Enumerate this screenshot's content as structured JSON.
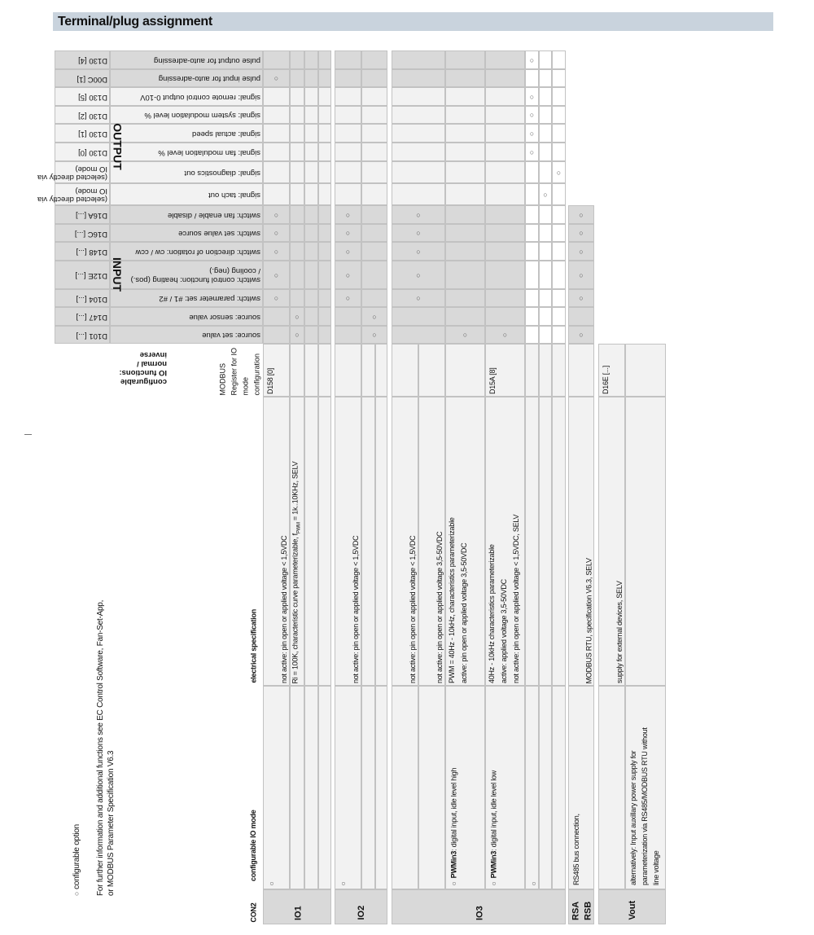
{
  "title": "Terminal/plug assignment",
  "colors": {
    "dark": "#d9d9d9",
    "light": "#f2f2f2",
    "border": "#c2c2c2",
    "title_bg": "#c9d3dd"
  },
  "mark_symbol": "○",
  "legend": {
    "symbol": "○",
    "label": "configurable  option"
  },
  "note": [
    "For further information and additional functions see EC Control Software, Fan-Set-App,",
    "or MODBUS Parameter Specification V6.3"
  ],
  "headers": {
    "con": "CON2",
    "mode": "configurable IO mode",
    "elec": "electrical specification",
    "reg": "MODBUS Register for IO mode configuration",
    "functions": "configurable IO functions: normal / inverse"
  },
  "sections": {
    "output": "OUTPUT",
    "input": "INPUT"
  },
  "functions": [
    {
      "label": "pulse output for auto-adressing",
      "register": "D130 [4]",
      "section": "output",
      "shade": "dark",
      "marks": [
        9
      ]
    },
    {
      "label": "pulse input for auto-adressing",
      "register": "D00C [1]",
      "section": "output",
      "shade": "dark",
      "marks": [
        0
      ]
    },
    {
      "label": "signal: remote control output 0-10V",
      "register": "D130 [5]",
      "section": "output",
      "shade": "light",
      "marks": [
        9
      ]
    },
    {
      "label": "signal: system modulation level %",
      "register": "D130 [2]",
      "section": "output",
      "shade": "light",
      "marks": [
        9
      ]
    },
    {
      "label": "signal: actual speed",
      "register": "D130 [1]",
      "section": "output",
      "shade": "light",
      "marks": [
        9
      ]
    },
    {
      "label": "signal: fan modulation level %",
      "register": "D130 [0]",
      "section": "output",
      "shade": "light",
      "marks": [
        9
      ]
    },
    {
      "label": "signal: diagnostics out",
      "register": "(selected directly via IO mode)",
      "section": "output",
      "shade": "light",
      "marks": [
        11
      ]
    },
    {
      "label": "signal: tach out",
      "register": "(selected directly via IO mode)",
      "section": "output",
      "shade": "light",
      "marks": [
        10
      ]
    },
    {
      "label": "switch: fan enable / disable",
      "register": "D16A [...]",
      "section": "input",
      "shade": "dark",
      "marks": [
        0,
        4,
        6,
        12
      ]
    },
    {
      "label": "switch: set value source",
      "register": "D16C [...]",
      "section": "input",
      "shade": "dark",
      "marks": [
        0,
        4,
        6,
        12
      ]
    },
    {
      "label": "switch: direction of rotation: cw / ccw",
      "register": "D148 [...]",
      "section": "input",
      "shade": "dark",
      "marks": [
        0,
        4,
        6,
        12
      ]
    },
    {
      "label": "switch: control function: heating (pos.) / cooling (neg.)",
      "register": "D12E [...]",
      "section": "input",
      "shade": "dark",
      "marks": [
        0,
        4,
        6,
        12
      ]
    },
    {
      "label": "switch: parameter set: #1 / #2",
      "register": "D104 [...]",
      "section": "input",
      "shade": "dark",
      "marks": [
        0,
        4,
        6,
        12
      ]
    },
    {
      "label": "source: sensor value",
      "register": "D147 [...]",
      "section": "input",
      "shade": "dark",
      "marks": [
        1,
        5
      ]
    },
    {
      "label": "source: set value",
      "register": "D101 [...]",
      "section": "input",
      "shade": "dark",
      "marks": [
        1,
        5,
        7,
        8,
        12
      ]
    }
  ],
  "terminals": [
    {
      "name": "IO1",
      "rows": [
        {
          "option": true,
          "elec": [
            "not active: pin open or applied voltage < 1,5VDC"
          ],
          "register": "D158 [0]"
        },
        {
          "elec": [
            {
              "pre": "Ri = 100K, characteristic curve parameterizable, f",
              "sub": "PWM",
              "post": " = 1k..10KHz, SELV"
            }
          ]
        },
        {},
        {}
      ]
    },
    {
      "name": "IO2",
      "rows": [
        {
          "option": true,
          "elec": [
            "not active: pin open or applied voltage < 1,5VDC"
          ]
        },
        {},
        {}
      ]
    },
    {
      "name": "IO3",
      "rows": [
        {
          "elec": [
            "not active: pin open or applied voltage < 1,5VDC"
          ]
        },
        {
          "elec": [
            "not active: pin open or applied voltage 3,5-50VDC"
          ]
        },
        {
          "option": true,
          "mode": {
            "bold": "PWMin3",
            "text": ": digital input, idle level high"
          },
          "elec": [
            "PWM = 40Hz - 10kHz, characteristics parameterizable",
            "active: pin open or applied voltage 3,5-50VDC"
          ]
        },
        {
          "option": true,
          "mode": {
            "bold": "PWMin3",
            "text": ": digital input, idle level low"
          },
          "elec": [
            "40Hz - 10kHz characteristics parameterizable",
            "active: applied voltage 3,5-50VDC",
            "not active: pin open or applied voltage < 1,5VDC, SELV"
          ],
          "register": "D15A [8]"
        },
        {
          "option": true
        },
        {},
        {}
      ]
    },
    {
      "name": "RSA RSB",
      "rows": [
        {
          "mode": {
            "bold": "",
            "text": "RS485 bus connection,"
          },
          "elec": [
            "MODBUS RTU, specification V6.3, SELV"
          ]
        }
      ]
    },
    {
      "name": "Vout",
      "rows": [
        {
          "elec": [
            "supply for external devices, SELV"
          ],
          "register": "D16E [...]"
        },
        {
          "mode": {
            "bold": "",
            "text": "alternatively:  Input auxillary power supply for parameterization via RS485/MODBUS RTU without line voltage"
          }
        }
      ]
    }
  ]
}
